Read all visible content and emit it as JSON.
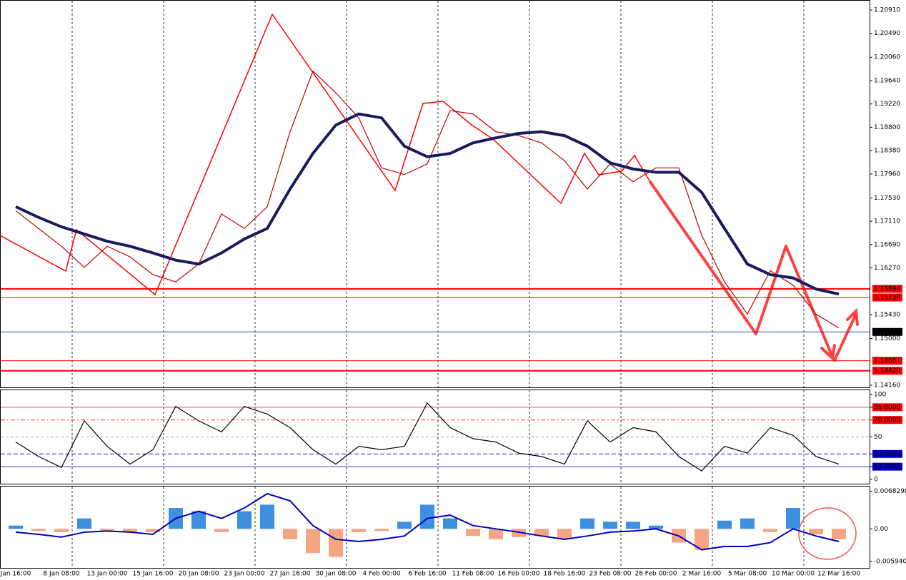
{
  "chart_data": [
    {
      "type": "line",
      "categories": [
        "Jan 16:00",
        null,
        "8 Jan 08:00",
        null,
        "13 Jan 00:00",
        null,
        "15 Jan 16:00",
        null,
        "20 Jan 08:00",
        null,
        "23 Jan 00:00",
        null,
        "27 Jan 16:00",
        null,
        "30 Jan 08:00",
        null,
        "4 Feb 00:00",
        null,
        "6 Feb 16:00",
        null,
        "11 Feb 08:00",
        null,
        "16 Feb 00:00",
        null,
        "18 Feb 16:00",
        null,
        "23 Feb 08:00",
        null,
        "26 Feb 00:00",
        null,
        "2 Mar 16:00",
        null,
        "5 Mar 08:00",
        null,
        "10 Mar 00:00",
        null,
        "12 Mar 16:00"
      ],
      "series": [
        {
          "color": "#c00000",
          "values": [
            1.173,
            1.1698,
            1.1666,
            1.1628,
            1.1666,
            1.1647,
            1.1615,
            1.1602,
            1.1634,
            1.1724,
            1.1698,
            1.1737,
            1.1872,
            1.1981,
            1.1942,
            1.1897,
            1.1807,
            1.1795,
            1.1814,
            1.191,
            1.1904,
            1.1872,
            1.1865,
            1.1852,
            1.182,
            1.1769,
            1.1814,
            1.1782,
            1.1807,
            1.1807,
            1.1686,
            1.1602,
            1.1544,
            1.1622,
            1.1596,
            1.1544,
            1.1519
          ]
        },
        {
          "color": "#1a1a5e",
          "values": [
            1.1737,
            1.1718,
            1.1701,
            1.1688,
            1.1675,
            1.1666,
            1.1654,
            1.1641,
            1.1634,
            1.1654,
            1.1679,
            1.1698,
            1.1769,
            1.1833,
            1.1884,
            1.1904,
            1.1897,
            1.1846,
            1.1827,
            1.1833,
            1.1852,
            1.1861,
            1.1869,
            1.1872,
            1.1865,
            1.1846,
            1.1816,
            1.1805,
            1.1799,
            1.1799,
            1.1763,
            1.1698,
            1.1634,
            1.1615,
            1.1609,
            1.1589,
            1.158
          ]
        }
      ],
      "ylim": [
        1.1416,
        1.2091
      ],
      "yticks": [
        {
          "value": 1.2091,
          "label": "1.20910"
        },
        {
          "value": 1.2049,
          "label": "1.20490"
        },
        {
          "value": 1.2006,
          "label": "1.20060"
        },
        {
          "value": 1.1964,
          "label": "1.19640"
        },
        {
          "value": 1.1922,
          "label": "1.19220"
        },
        {
          "value": 1.188,
          "label": "1.18800"
        },
        {
          "value": 1.1838,
          "label": "1.18380"
        },
        {
          "value": 1.1796,
          "label": "1.17960"
        },
        {
          "value": 1.1753,
          "label": "1.17530"
        },
        {
          "value": 1.1711,
          "label": "1.17110"
        },
        {
          "value": 1.1669,
          "label": "1.16690"
        },
        {
          "value": 1.1627,
          "label": "1.16270"
        },
        {
          "value": 1.1543,
          "label": "1.15430"
        },
        {
          "value": 1.15,
          "label": "1.15000"
        },
        {
          "value": 1.1416,
          "label": "1.14160"
        }
      ],
      "levels": [
        {
          "value": 1.15894,
          "label": "1.15894",
          "color": "#ff0000"
        },
        {
          "value": 1.15738,
          "label": "1.15738",
          "color": "#ff0000"
        },
        {
          "value": 1.15119,
          "label": "1.15119",
          "color": "#3050c0"
        },
        {
          "value": 1.14601,
          "label": "1.14601",
          "color": "#ff0000"
        },
        {
          "value": 1.1442,
          "label": "1.14420",
          "color": "#ff0000"
        }
      ]
    },
    {
      "type": "line",
      "series": [
        {
          "color": "#000000",
          "values": [
            44,
            27,
            14,
            69,
            39,
            18,
            35,
            86,
            69,
            56,
            86,
            77,
            61,
            35,
            18,
            39,
            35,
            39,
            90,
            61,
            48,
            44,
            31,
            27,
            18,
            69,
            44,
            61,
            56,
            27,
            10,
            39,
            31,
            61,
            52,
            27,
            18
          ]
        }
      ],
      "ylim": [
        0,
        100
      ],
      "yticks": [
        100,
        {
          "value": 85,
          "label": "85.0000"
        },
        {
          "value": 70,
          "label": "70.0000"
        },
        50,
        {
          "value": 30,
          "label": "30.0000"
        },
        {
          "value": 15,
          "label": "15.0000"
        },
        0
      ]
    },
    {
      "type": "macd",
      "histogram": {
        "color_up": "#3d8fe0",
        "color_down": "#f4a582",
        "values": [
          0.0006,
          -0.0004,
          -0.0006,
          0.0019,
          -0.0004,
          -0.0006,
          -0.0006,
          0.0038,
          0.0032,
          -0.0006,
          0.0032,
          0.0044,
          -0.0019,
          -0.0044,
          -0.0051,
          -0.0006,
          -0.0004,
          0.0013,
          0.0044,
          0.0019,
          -0.0013,
          -0.0019,
          -0.0015,
          -0.0013,
          -0.0019,
          0.0019,
          0.0013,
          0.0013,
          0.0006,
          -0.0025,
          -0.0038,
          0.0015,
          0.0019,
          -0.0006,
          0.0038,
          -0.001,
          -0.0019
        ]
      },
      "series": [
        {
          "color": "#0000c0",
          "values": [
            -0.0006,
            -0.001,
            -0.0015,
            -0.0006,
            -0.0004,
            -0.0006,
            -0.001,
            0.0019,
            0.0032,
            0.0019,
            0.0038,
            0.0064,
            0.0051,
            0.0006,
            -0.0019,
            -0.0023,
            -0.0019,
            -0.0013,
            0.0019,
            0.0025,
            0.0006,
            0,
            -0.0006,
            -0.0013,
            -0.0019,
            -0.0013,
            -0.0006,
            -0.0004,
            0,
            -0.0013,
            -0.0038,
            -0.0032,
            -0.0032,
            -0.0025,
            0,
            -0.0013,
            -0.0023
          ]
        }
      ],
      "ylim": [
        -0.0071,
        0.0077
      ],
      "yticks": [
        0.0068298,
        {
          "value": 0,
          "label": "0.00"
        },
        {
          "value": -0.00594,
          "label": "-0.005940"
        }
      ]
    }
  ]
}
